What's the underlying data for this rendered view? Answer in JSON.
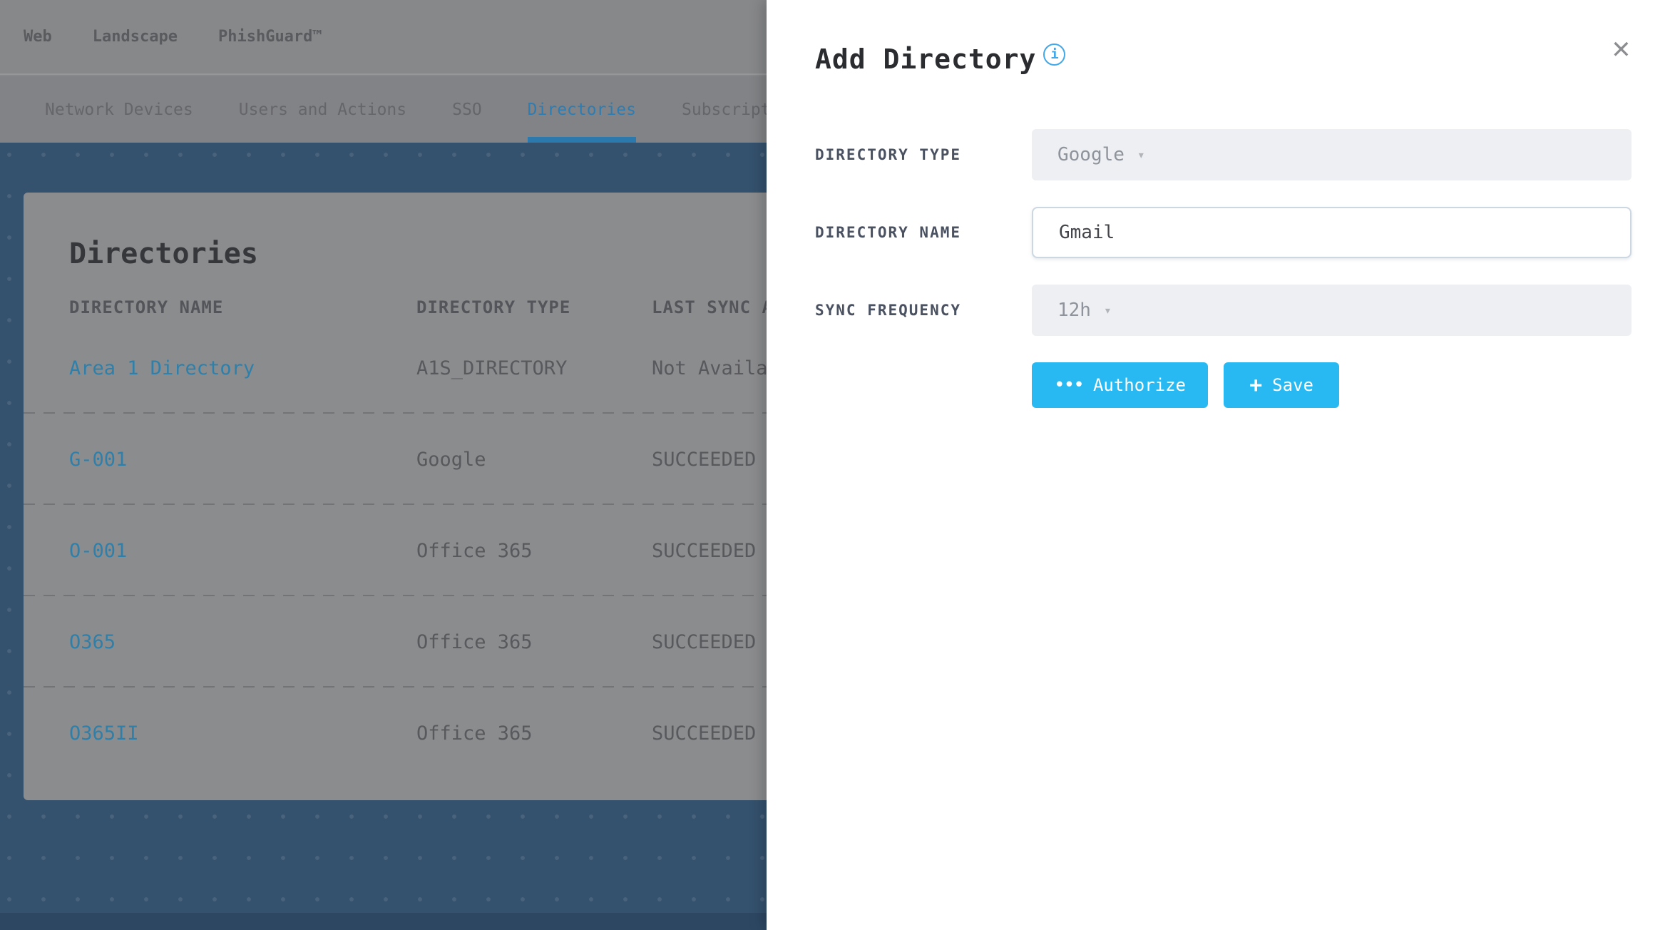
{
  "topbar": {
    "items": [
      "Web",
      "Landscape",
      "PhishGuard™"
    ]
  },
  "tabs": [
    {
      "label": "Network Devices",
      "active": false
    },
    {
      "label": "Users and Actions",
      "active": false
    },
    {
      "label": "SSO",
      "active": false
    },
    {
      "label": "Directories",
      "active": true
    },
    {
      "label": "Subscriptions",
      "active": false
    }
  ],
  "card": {
    "heading": "Directories",
    "table": {
      "headers": [
        "DIRECTORY NAME",
        "DIRECTORY TYPE",
        "LAST SYNC AT"
      ],
      "rows": [
        {
          "name": "Area 1 Directory",
          "type": "A1S_DIRECTORY",
          "last_sync": "Not Available"
        },
        {
          "name": "G-001",
          "type": "Google",
          "last_sync": "SUCCEEDED"
        },
        {
          "name": "O-001",
          "type": "Office 365",
          "last_sync": "SUCCEEDED"
        },
        {
          "name": "O365",
          "type": "Office 365",
          "last_sync": "SUCCEEDED"
        },
        {
          "name": "O365II",
          "type": "Office 365",
          "last_sync": "SUCCEEDED"
        }
      ]
    }
  },
  "panel": {
    "title": "Add Directory",
    "fields": [
      {
        "label": "DIRECTORY TYPE",
        "value": "Google",
        "type": "select"
      },
      {
        "label": "DIRECTORY NAME",
        "value": "Gmail",
        "type": "text"
      },
      {
        "label": "SYNC FREQUENCY",
        "value": "12h",
        "type": "select"
      }
    ],
    "buttons": [
      {
        "label": "Authorize"
      },
      {
        "label": "Save"
      }
    ]
  },
  "icons": {
    "info": "i",
    "close": "✕",
    "caret": "▾",
    "authorize_dots": "•••",
    "save_plus": "+"
  },
  "colors": {
    "accent_button": "#29b9f2",
    "info_icon": "#41a8e9",
    "active_tab": "#2b7db4",
    "link": "#2e80ab",
    "hero_background": "#34516d",
    "field_background": "#edeff2",
    "input_border": "#ccd7e2"
  }
}
